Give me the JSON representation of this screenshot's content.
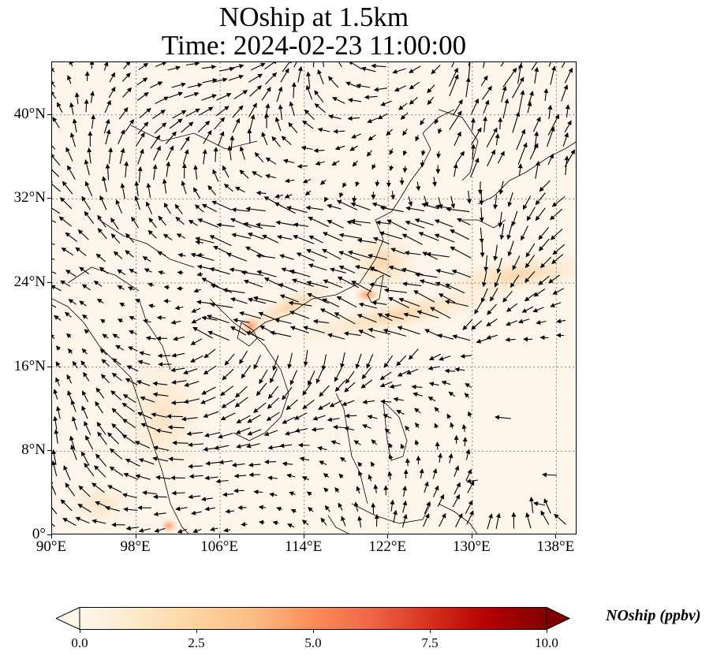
{
  "title": {
    "line1": "NOship at 1.5km",
    "line2": "Time: 2024-02-23 11:00:00"
  },
  "map": {
    "extent": {
      "lon": [
        90,
        140
      ],
      "lat": [
        0,
        45
      ]
    },
    "lat_ticks": [
      {
        "value": 0,
        "label": "0°"
      },
      {
        "value": 8,
        "label": "8°N"
      },
      {
        "value": 16,
        "label": "16°N"
      },
      {
        "value": 24,
        "label": "24°N"
      },
      {
        "value": 32,
        "label": "32°N"
      },
      {
        "value": 40,
        "label": "40°N"
      }
    ],
    "lon_ticks": [
      {
        "value": 90,
        "label": "90°E"
      },
      {
        "value": 98,
        "label": "98°E"
      },
      {
        "value": 106,
        "label": "106°E"
      },
      {
        "value": 114,
        "label": "114°E"
      },
      {
        "value": 122,
        "label": "122°E"
      },
      {
        "value": 130,
        "label": "130°E"
      },
      {
        "value": 138,
        "label": "138°E"
      }
    ],
    "gridlines": true,
    "background_color": "#fff5eb",
    "coastline_color": "#000000",
    "vector_color": "#000000"
  },
  "colorbar": {
    "label": "NOship (ppbv)",
    "range": [
      0,
      10
    ],
    "colormap": "OrRd",
    "colors": [
      "#fff7ec",
      "#fee8c8",
      "#fdd49e",
      "#fdbb84",
      "#fc8d59",
      "#ef6548",
      "#d7301f",
      "#b30000",
      "#7f0000"
    ],
    "ticks": [
      {
        "value": 0,
        "label": "0.0"
      },
      {
        "value": 2.5,
        "label": "2.5"
      },
      {
        "value": 5,
        "label": "5.0"
      },
      {
        "value": 7.5,
        "label": "7.5"
      },
      {
        "value": 10,
        "label": "10.0"
      }
    ],
    "extend": "both"
  }
}
